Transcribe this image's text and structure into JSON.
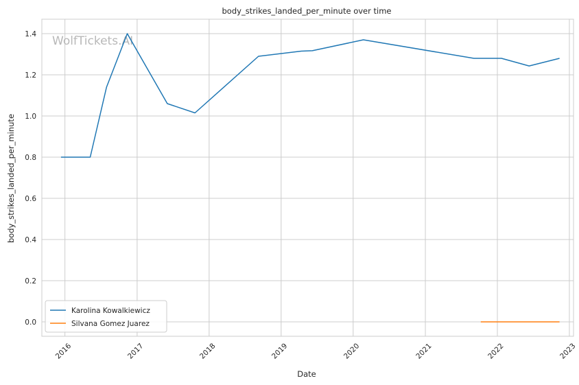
{
  "chart_data": {
    "type": "line",
    "title": "body_strikes_landed_per_minute over time",
    "xlabel": "Date",
    "ylabel": "body_strikes_landed_per_minute",
    "watermark": "WolfTickets.AI",
    "xlim": [
      "2015-09-06",
      "2023-01-22"
    ],
    "ylim": [
      -0.07,
      1.47
    ],
    "x_ticks": [
      "2016",
      "2017",
      "2018",
      "2019",
      "2020",
      "2021",
      "2022",
      "2023"
    ],
    "y_ticks": [
      "0.0",
      "0.2",
      "0.4",
      "0.6",
      "0.8",
      "1.0",
      "1.2",
      "1.4"
    ],
    "grid": true,
    "legend_position": "lower-left",
    "series": [
      {
        "name": "Karolina Kowalkiewicz",
        "color": "#1f77b4",
        "points": [
          {
            "x": "2015-12-12",
            "y": 0.8
          },
          {
            "x": "2016-05-08",
            "y": 0.8
          },
          {
            "x": "2016-07-30",
            "y": 1.14
          },
          {
            "x": "2016-11-12",
            "y": 1.4
          },
          {
            "x": "2017-06-03",
            "y": 1.06
          },
          {
            "x": "2017-10-21",
            "y": 1.015
          },
          {
            "x": "2018-09-08",
            "y": 1.29
          },
          {
            "x": "2019-04-13",
            "y": 1.315
          },
          {
            "x": "2019-06-08",
            "y": 1.317
          },
          {
            "x": "2020-02-22",
            "y": 1.37
          },
          {
            "x": "2021-09-04",
            "y": 1.28
          },
          {
            "x": "2022-01-22",
            "y": 1.28
          },
          {
            "x": "2022-06-11",
            "y": 1.243
          },
          {
            "x": "2022-11-12",
            "y": 1.28
          }
        ]
      },
      {
        "name": "Silvana Gomez Juarez",
        "color": "#ff7f0e",
        "points": [
          {
            "x": "2021-10-09",
            "y": 0.0
          },
          {
            "x": "2022-11-12",
            "y": 0.0
          }
        ]
      }
    ]
  }
}
